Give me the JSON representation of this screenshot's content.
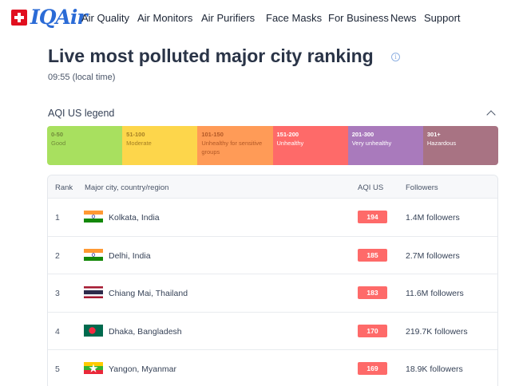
{
  "header": {
    "logo_text": "IQAir",
    "nav": [
      {
        "label": "Air Quality"
      },
      {
        "label": "Air Monitors"
      },
      {
        "label": "Air Purifiers"
      },
      {
        "label": "Face Masks"
      },
      {
        "label": "For Business"
      },
      {
        "label": "News"
      },
      {
        "label": "Support"
      }
    ]
  },
  "page": {
    "title": "Live most polluted major city ranking",
    "local_time": "09:55 (local time)"
  },
  "legend": {
    "title": "AQI US legend",
    "segments": [
      {
        "range": "0-50",
        "label": "Good",
        "color": "#a8e05f"
      },
      {
        "range": "51-100",
        "label": "Moderate",
        "color": "#fdd64b"
      },
      {
        "range": "101-150",
        "label": "Unhealthy for sensitive groups",
        "color": "#ff9b57"
      },
      {
        "range": "151-200",
        "label": "Unhealthy",
        "color": "#fe6a69"
      },
      {
        "range": "201-300",
        "label": "Very unhealthy",
        "color": "#a97abc"
      },
      {
        "range": "301+",
        "label": "Hazardous",
        "color": "#a87383"
      }
    ]
  },
  "table": {
    "headers": {
      "rank": "Rank",
      "city": "Major city, country/region",
      "aqi": "AQI US",
      "followers": "Followers"
    },
    "rows": [
      {
        "rank": "1",
        "city": "Kolkata, India",
        "aqi": "194",
        "followers": "1.4M followers",
        "flag": "india-flag-icon"
      },
      {
        "rank": "2",
        "city": "Delhi, India",
        "aqi": "185",
        "followers": "2.7M followers",
        "flag": "india-flag-icon"
      },
      {
        "rank": "3",
        "city": "Chiang Mai, Thailand",
        "aqi": "183",
        "followers": "11.6M followers",
        "flag": "thailand-flag-icon"
      },
      {
        "rank": "4",
        "city": "Dhaka, Bangladesh",
        "aqi": "170",
        "followers": "219.7K followers",
        "flag": "bangladesh-flag-icon"
      },
      {
        "rank": "5",
        "city": "Yangon, Myanmar",
        "aqi": "169",
        "followers": "18.9K followers",
        "flag": "myanmar-flag-icon"
      }
    ]
  }
}
